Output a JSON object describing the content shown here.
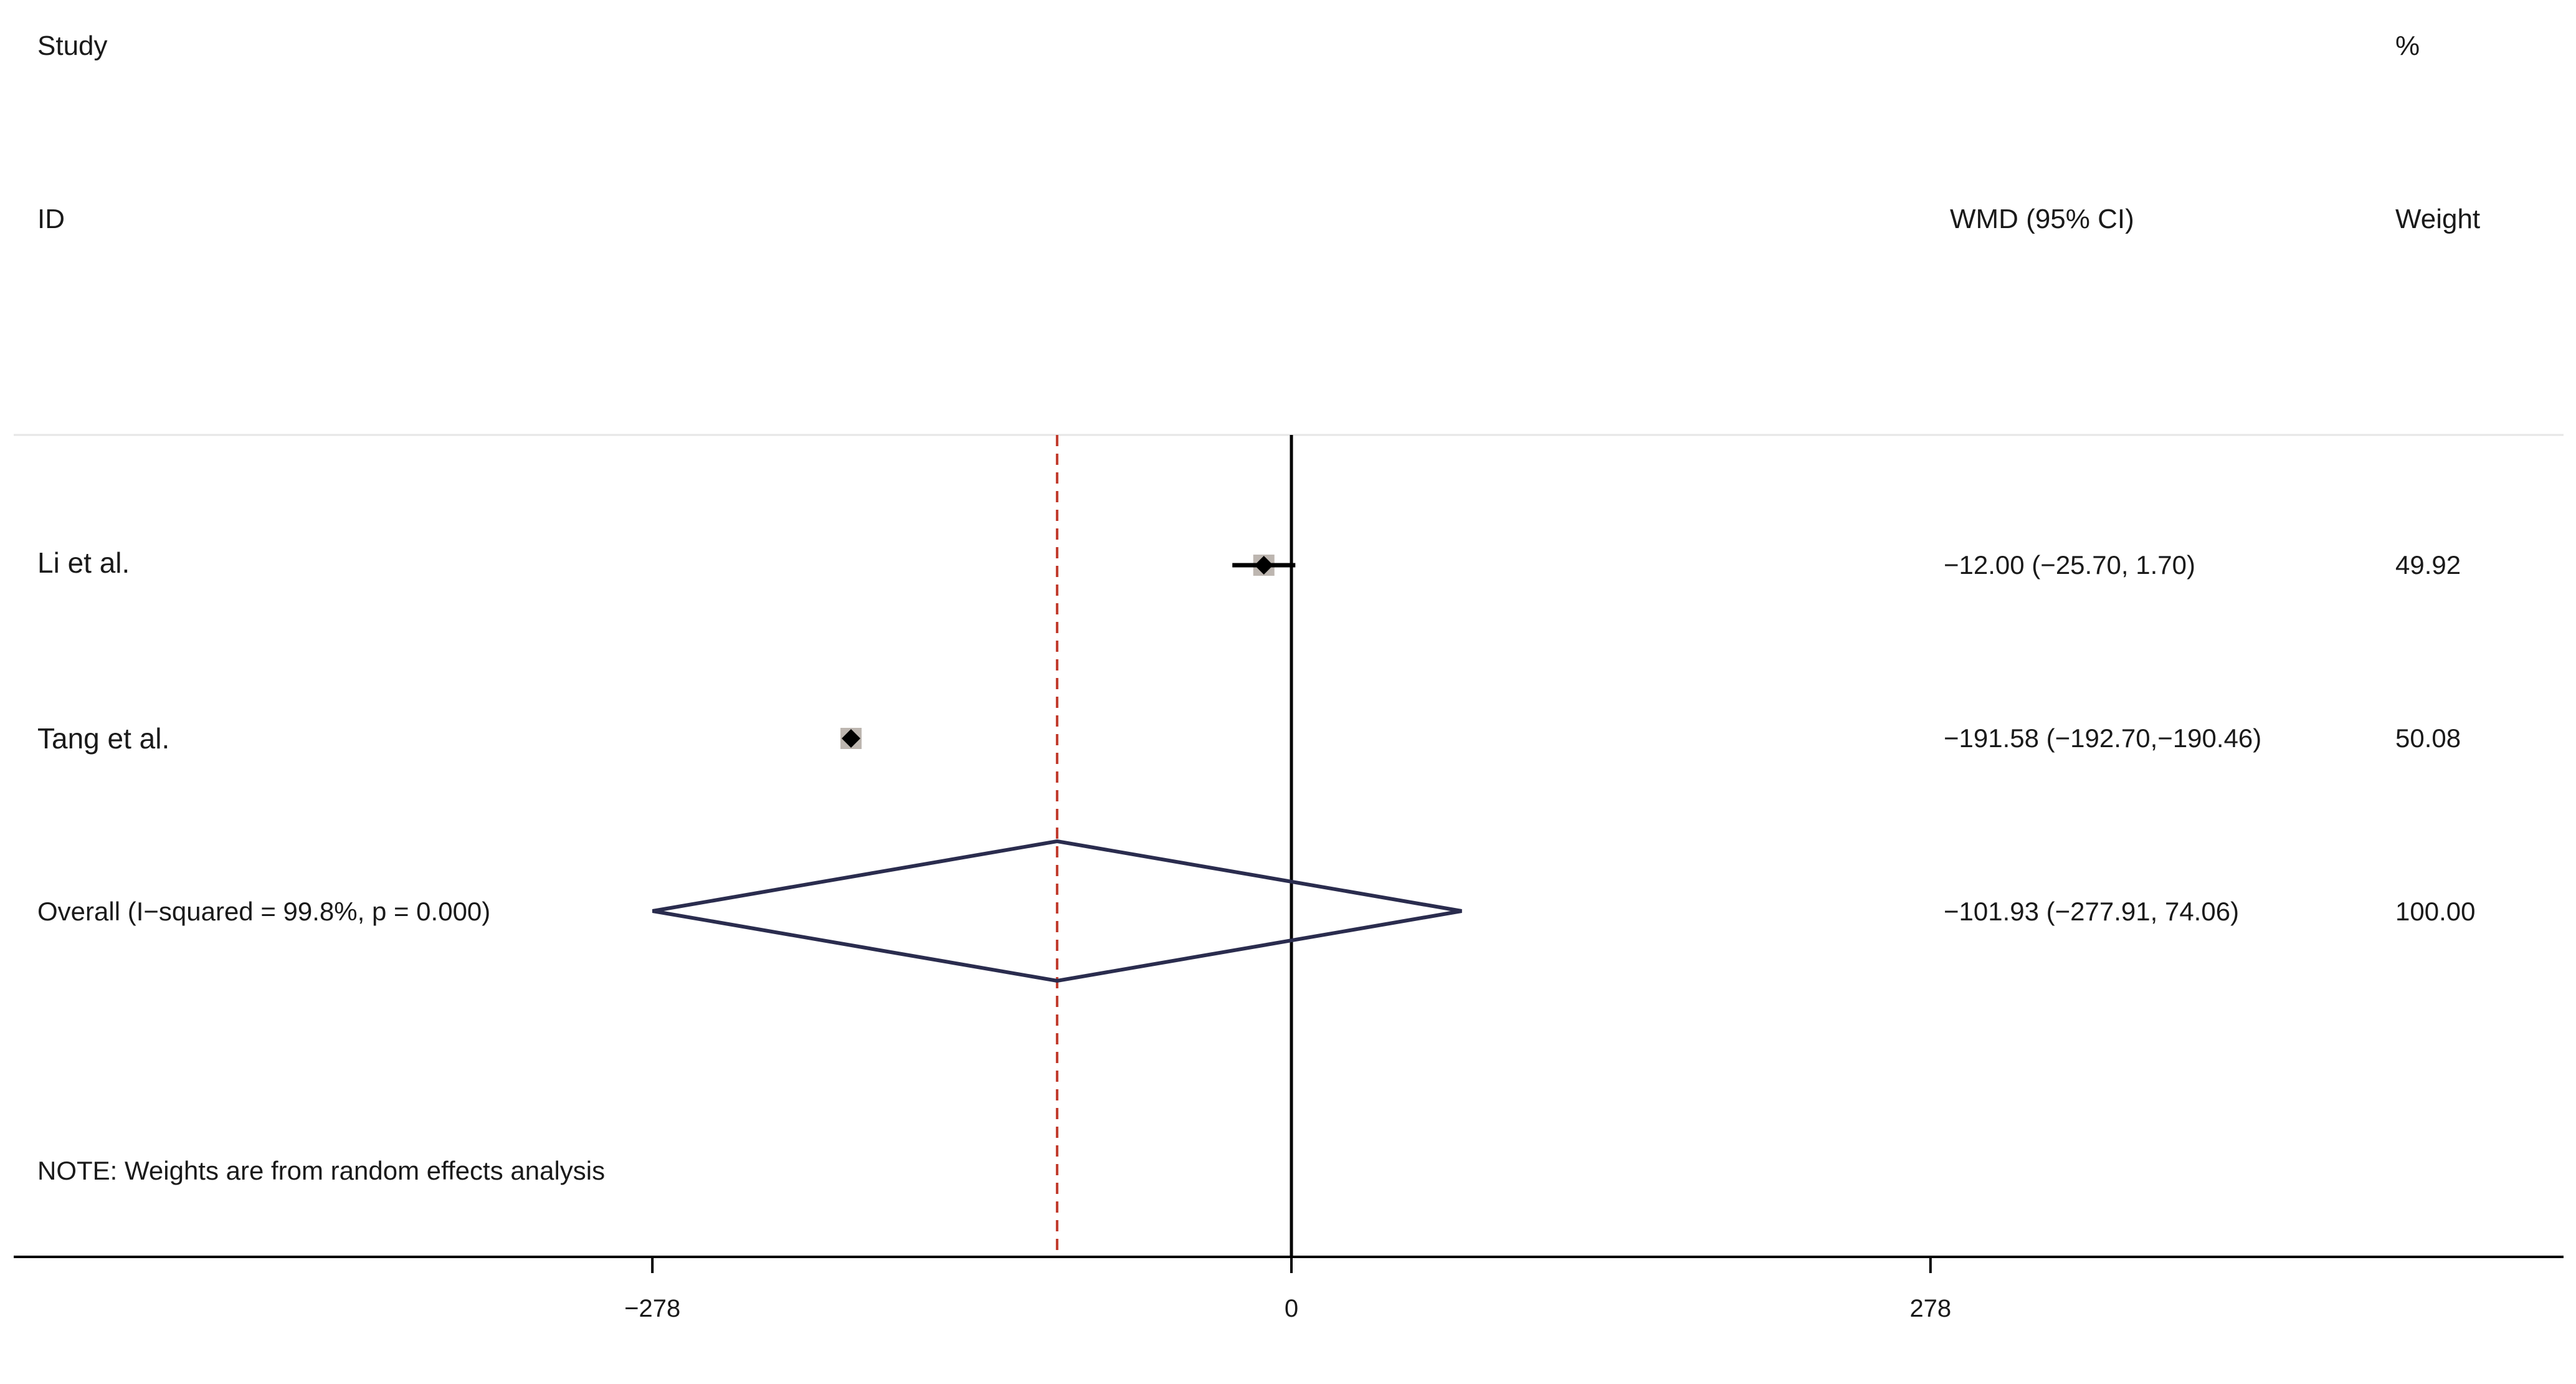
{
  "headers": {
    "study_top": "Study",
    "study_bottom": "ID",
    "effect": "WMD (95% CI)",
    "weight_top": "%",
    "weight_bottom": "Weight"
  },
  "note": "NOTE: Weights are from random effects analysis",
  "colors": {
    "axis": "#000000",
    "study_ci": "#000000",
    "marker_box": "#bdb6b0",
    "diamond": "#2a2c4e",
    "overall_line": "#c0392b",
    "separator": "#e6e6e6"
  },
  "chart_data": {
    "type": "forest",
    "measure": "WMD",
    "xlim": [
      -360,
      360
    ],
    "xticks": [
      -278,
      0,
      278
    ],
    "xtick_labels": [
      "−278",
      "0",
      "278"
    ],
    "null_line": 0,
    "overall_line": -101.93,
    "studies": [
      {
        "label": "Li et al.",
        "estimate": -12.0,
        "ci_low": -25.7,
        "ci_high": 1.7,
        "effect_text": "−12.00 (−25.70, 1.70)",
        "weight": 49.92,
        "weight_text": "49.92"
      },
      {
        "label": "Tang et al.",
        "estimate": -191.58,
        "ci_low": -192.7,
        "ci_high": -190.46,
        "effect_text": "−191.58 (−192.70,−190.46)",
        "weight": 50.08,
        "weight_text": "50.08"
      }
    ],
    "overall": {
      "label": "Overall  (I−squared = 99.8%, p = 0.000)",
      "estimate": -101.93,
      "ci_low": -277.91,
      "ci_high": 74.06,
      "effect_text": "−101.93 (−277.91, 74.06)",
      "weight": 100.0,
      "weight_text": "100.00"
    }
  }
}
